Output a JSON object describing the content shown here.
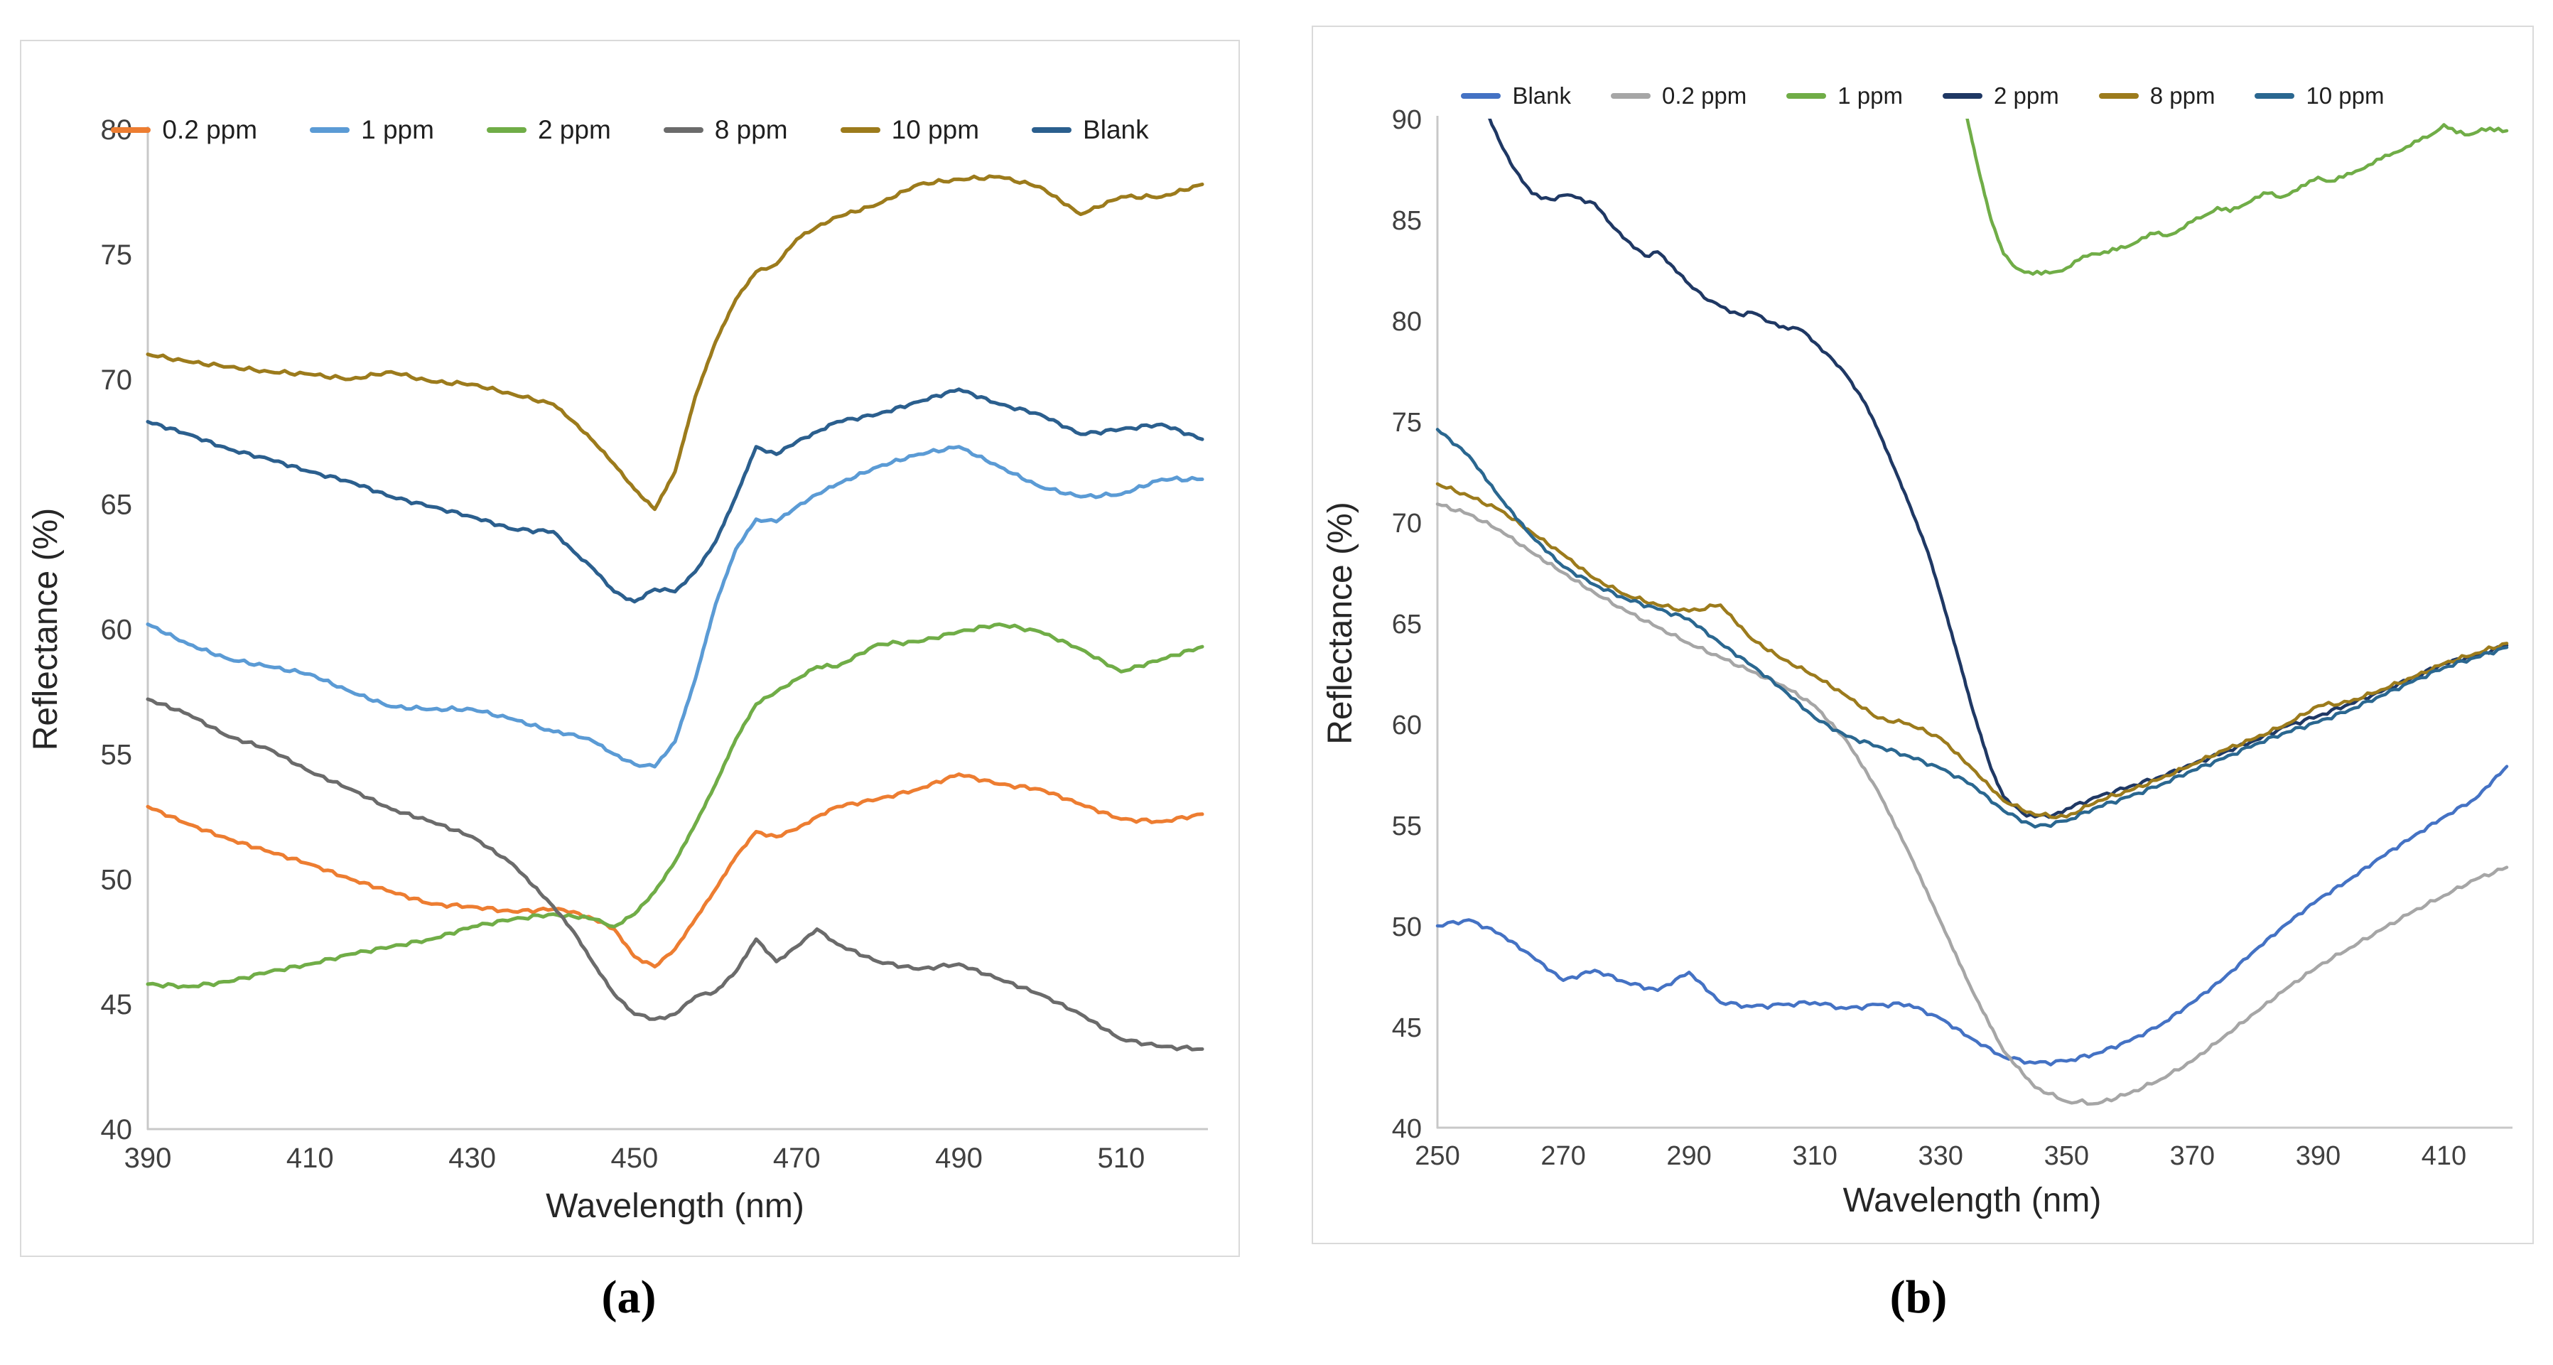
{
  "figure": {
    "captions": [
      "(a)",
      "(b)"
    ]
  },
  "chart_data": [
    {
      "id": "a",
      "type": "line",
      "title": "",
      "xlabel": "Wavelength (nm)",
      "ylabel": "Reflectance (%)",
      "xlim": [
        390,
        520
      ],
      "ylim": [
        40,
        80
      ],
      "xticks": [
        390,
        410,
        430,
        450,
        470,
        490,
        510
      ],
      "yticks": [
        40,
        45,
        50,
        55,
        60,
        65,
        70,
        75,
        80
      ],
      "grid": false,
      "legend_position": "top",
      "legend_order": [
        "0.2 ppm",
        "1 ppm",
        "2 ppm",
        "8 ppm",
        "10 ppm",
        "Blank"
      ],
      "series": [
        {
          "name": "0.2 ppm",
          "color": "#ED7D31",
          "x": [
            390,
            395,
            400,
            405,
            410,
            415,
            420,
            425,
            430,
            435,
            440,
            442.5,
            445,
            447.5,
            450,
            452.5,
            455,
            457.5,
            460,
            462.5,
            465,
            467.5,
            470,
            472.5,
            475,
            480,
            485,
            490,
            495,
            500,
            505,
            510,
            515,
            520
          ],
          "y": [
            52.9,
            52.2,
            51.6,
            51.1,
            50.6,
            50.0,
            49.5,
            49.0,
            48.9,
            48.7,
            48.8,
            48.7,
            48.4,
            48.0,
            46.9,
            46.5,
            47.2,
            48.4,
            49.6,
            50.9,
            51.9,
            51.7,
            52.0,
            52.5,
            52.9,
            53.2,
            53.6,
            54.2,
            53.8,
            53.6,
            53.0,
            52.4,
            52.3,
            52.6
          ]
        },
        {
          "name": "1 ppm",
          "color": "#5B9BD5",
          "x": [
            390,
            395,
            400,
            405,
            410,
            415,
            420,
            425,
            430,
            435,
            440,
            442.5,
            445,
            447.5,
            450,
            452.5,
            455,
            457.5,
            460,
            462.5,
            465,
            467.5,
            470,
            472.5,
            475,
            480,
            485,
            490,
            495,
            500,
            505,
            510,
            515,
            520
          ],
          "y": [
            60.2,
            59.4,
            58.8,
            58.5,
            58.2,
            57.5,
            56.9,
            56.8,
            56.8,
            56.4,
            55.9,
            55.8,
            55.5,
            55.0,
            54.6,
            54.5,
            55.5,
            58.0,
            61.0,
            63.2,
            64.4,
            64.3,
            64.9,
            65.4,
            65.8,
            66.5,
            67.0,
            67.3,
            66.5,
            65.7,
            65.3,
            65.4,
            66.0,
            66.0
          ]
        },
        {
          "name": "2 ppm",
          "color": "#70AD47",
          "x": [
            390,
            395,
            400,
            405,
            410,
            415,
            420,
            425,
            430,
            435,
            440,
            442.5,
            445,
            447.5,
            450,
            452.5,
            455,
            457.5,
            460,
            462.5,
            465,
            467.5,
            470,
            472.5,
            475,
            480,
            485,
            490,
            495,
            500,
            505,
            510,
            515,
            520
          ],
          "y": [
            45.8,
            45.7,
            45.9,
            46.3,
            46.6,
            47.0,
            47.3,
            47.6,
            48.1,
            48.4,
            48.6,
            48.5,
            48.4,
            48.1,
            48.6,
            49.5,
            50.7,
            52.2,
            53.8,
            55.6,
            57.0,
            57.5,
            58.0,
            58.5,
            58.5,
            59.4,
            59.5,
            59.9,
            60.2,
            59.9,
            59.2,
            58.3,
            58.8,
            59.3
          ]
        },
        {
          "name": "8 ppm",
          "color": "#6B6B6B",
          "x": [
            390,
            395,
            400,
            405,
            410,
            415,
            420,
            425,
            430,
            435,
            440,
            442.5,
            445,
            447.5,
            450,
            452.5,
            455,
            457.5,
            460,
            462.5,
            465,
            467.5,
            470,
            472.5,
            475,
            480,
            485,
            490,
            495,
            500,
            505,
            510,
            515,
            520
          ],
          "y": [
            57.2,
            56.6,
            55.7,
            55.2,
            54.3,
            53.6,
            52.8,
            52.3,
            51.7,
            50.6,
            48.9,
            47.9,
            46.6,
            45.4,
            44.6,
            44.4,
            44.6,
            45.3,
            45.5,
            46.3,
            47.6,
            46.7,
            47.3,
            48.0,
            47.4,
            46.7,
            46.4,
            46.6,
            46.0,
            45.4,
            44.6,
            43.6,
            43.3,
            43.2
          ]
        },
        {
          "name": "10 ppm",
          "color": "#9C7B1C",
          "x": [
            390,
            395,
            400,
            405,
            410,
            415,
            420,
            425,
            430,
            435,
            440,
            442.5,
            445,
            447.5,
            450,
            452.5,
            455,
            457.5,
            460,
            462.5,
            465,
            467.5,
            470,
            472.5,
            475,
            480,
            485,
            490,
            495,
            500,
            505,
            510,
            515,
            520
          ],
          "y": [
            71.0,
            70.7,
            70.5,
            70.3,
            70.2,
            70.0,
            70.3,
            69.9,
            69.8,
            69.4,
            69.0,
            68.3,
            67.5,
            66.6,
            65.6,
            64.8,
            66.3,
            69.3,
            71.5,
            73.2,
            74.3,
            74.6,
            75.6,
            76.1,
            76.5,
            77.0,
            77.8,
            78.0,
            78.1,
            77.7,
            76.6,
            77.3,
            77.3,
            77.8
          ]
        },
        {
          "name": "Blank",
          "color": "#2B5F8E",
          "x": [
            390,
            395,
            400,
            405,
            410,
            415,
            420,
            425,
            430,
            435,
            440,
            442.5,
            445,
            447.5,
            450,
            452.5,
            455,
            457.5,
            460,
            462.5,
            465,
            467.5,
            470,
            472.5,
            475,
            480,
            485,
            490,
            495,
            500,
            505,
            510,
            515,
            520
          ],
          "y": [
            68.3,
            67.8,
            67.2,
            66.8,
            66.3,
            65.9,
            65.3,
            64.9,
            64.5,
            64.0,
            63.9,
            63.1,
            62.4,
            61.5,
            61.1,
            61.6,
            61.5,
            62.3,
            63.5,
            65.3,
            67.3,
            67.0,
            67.5,
            67.9,
            68.3,
            68.6,
            69.1,
            69.6,
            69.0,
            68.6,
            67.8,
            68.0,
            68.2,
            67.6
          ]
        }
      ]
    },
    {
      "id": "b",
      "type": "line",
      "title": "",
      "xlabel": "Wavelength (nm)",
      "ylabel": "Reflectance (%)",
      "xlim": [
        250,
        420
      ],
      "ylim": [
        40,
        90
      ],
      "xticks": [
        250,
        270,
        290,
        310,
        330,
        350,
        370,
        390,
        410
      ],
      "yticks": [
        40,
        45,
        50,
        55,
        60,
        65,
        70,
        75,
        80,
        85,
        90
      ],
      "grid": false,
      "legend_position": "top",
      "legend_order": [
        "Blank",
        "0.2 ppm",
        "1 ppm",
        "2 ppm",
        "8 ppm",
        "10 ppm"
      ],
      "series": [
        {
          "name": "Blank",
          "color": "#4472C4",
          "x": [
            250,
            255,
            260,
            265,
            270,
            275,
            280,
            285,
            290,
            295,
            300,
            305,
            310,
            315,
            320,
            325,
            330,
            335,
            340,
            345,
            350,
            355,
            360,
            365,
            370,
            375,
            380,
            385,
            390,
            395,
            400,
            405,
            410,
            415,
            420
          ],
          "y": [
            50.0,
            50.3,
            49.6,
            48.5,
            47.3,
            47.8,
            47.2,
            46.8,
            47.7,
            46.2,
            46.0,
            46.1,
            46.2,
            45.9,
            46.1,
            46.1,
            45.4,
            44.4,
            43.5,
            43.2,
            43.3,
            43.7,
            44.3,
            45.1,
            46.2,
            47.4,
            48.8,
            50.1,
            51.3,
            52.3,
            53.4,
            54.4,
            55.4,
            56.3,
            57.9
          ]
        },
        {
          "name": "0.2 ppm",
          "color": "#A6A6A6",
          "x": [
            250,
            255,
            260,
            265,
            270,
            275,
            280,
            285,
            290,
            295,
            300,
            305,
            310,
            315,
            320,
            325,
            330,
            335,
            340,
            345,
            350,
            355,
            360,
            365,
            370,
            375,
            380,
            385,
            390,
            395,
            400,
            405,
            410,
            415,
            420
          ],
          "y": [
            70.9,
            70.4,
            69.6,
            68.5,
            67.5,
            66.5,
            65.6,
            64.8,
            64.0,
            63.3,
            62.6,
            61.9,
            60.9,
            59.2,
            56.7,
            53.6,
            50.2,
            46.8,
            43.8,
            42.0,
            41.3,
            41.2,
            41.7,
            42.4,
            43.3,
            44.5,
            45.7,
            46.9,
            48.0,
            48.9,
            49.8,
            50.7,
            51.5,
            52.3,
            52.9
          ]
        },
        {
          "name": "1 ppm",
          "color": "#70AD47",
          "x": [
            334,
            336,
            338,
            340,
            342,
            344,
            346,
            348,
            350,
            352,
            354,
            356,
            358,
            360,
            362,
            364,
            366,
            368,
            370,
            372,
            374,
            376,
            378,
            380,
            382,
            384,
            386,
            388,
            390,
            392,
            394,
            396,
            398,
            400,
            402,
            404,
            406,
            408,
            410,
            412,
            414,
            416,
            418,
            420
          ],
          "y": [
            90.3,
            87.5,
            85.0,
            83.3,
            82.6,
            82.4,
            82.3,
            82.4,
            82.6,
            83.0,
            83.3,
            83.4,
            83.5,
            83.7,
            84.1,
            84.3,
            84.2,
            84.5,
            84.9,
            85.2,
            85.6,
            85.4,
            85.7,
            86.1,
            86.3,
            86.1,
            86.4,
            86.7,
            87.1,
            86.9,
            87.1,
            87.4,
            87.7,
            88.0,
            88.3,
            88.6,
            88.9,
            89.2,
            89.7,
            89.3,
            89.2,
            89.5,
            89.4,
            89.4
          ]
        },
        {
          "name": "2 ppm",
          "color": "#1F3864",
          "x": [
            258,
            260,
            262,
            265,
            268,
            270,
            272,
            275,
            278,
            280,
            283,
            285,
            287,
            290,
            293,
            295,
            298,
            300,
            303,
            305,
            308,
            310,
            313,
            315,
            318,
            320,
            323,
            325,
            328,
            330,
            333,
            335,
            338,
            340,
            343,
            345,
            348,
            350,
            355,
            360,
            365,
            370,
            375,
            380,
            385,
            390,
            395,
            400,
            405,
            410,
            415,
            420
          ],
          "y": [
            90.2,
            88.8,
            87.6,
            86.3,
            86.0,
            86.2,
            86.1,
            85.8,
            84.6,
            84.0,
            83.2,
            83.4,
            82.8,
            81.8,
            81.0,
            80.7,
            80.3,
            80.4,
            79.9,
            79.7,
            79.5,
            78.9,
            78.0,
            77.3,
            75.9,
            74.6,
            72.4,
            70.9,
            68.5,
            66.4,
            63.1,
            60.8,
            57.8,
            56.4,
            55.6,
            55.4,
            55.5,
            55.8,
            56.4,
            56.9,
            57.4,
            58.0,
            58.6,
            59.2,
            59.9,
            60.4,
            61.0,
            61.6,
            62.3,
            63.0,
            63.4,
            63.9
          ]
        },
        {
          "name": "8 ppm",
          "color": "#9C7B1C",
          "x": [
            250,
            255,
            260,
            265,
            270,
            275,
            280,
            285,
            290,
            295,
            300,
            305,
            310,
            315,
            320,
            325,
            330,
            335,
            340,
            345,
            350,
            355,
            360,
            365,
            370,
            375,
            380,
            385,
            390,
            395,
            400,
            405,
            410,
            415,
            420
          ],
          "y": [
            71.9,
            71.3,
            70.6,
            69.5,
            68.4,
            67.2,
            66.4,
            65.9,
            65.6,
            65.9,
            64.2,
            63.2,
            62.4,
            61.4,
            60.3,
            60.0,
            59.3,
            57.8,
            56.2,
            55.5,
            55.4,
            56.2,
            56.7,
            57.3,
            58.0,
            58.7,
            59.3,
            60.0,
            60.9,
            61.1,
            61.7,
            62.3,
            63.0,
            63.5,
            64.0
          ]
        },
        {
          "name": "10 ppm",
          "color": "#2A6790",
          "x": [
            250,
            255,
            260,
            265,
            270,
            275,
            280,
            285,
            290,
            295,
            300,
            305,
            310,
            315,
            320,
            325,
            330,
            335,
            340,
            345,
            350,
            355,
            360,
            365,
            370,
            375,
            380,
            385,
            390,
            395,
            400,
            405,
            410,
            415,
            420
          ],
          "y": [
            74.6,
            73.3,
            71.2,
            69.3,
            67.8,
            66.9,
            66.2,
            65.7,
            65.2,
            64.0,
            62.9,
            61.7,
            60.3,
            59.4,
            58.9,
            58.4,
            57.8,
            57.0,
            55.7,
            54.9,
            55.2,
            55.9,
            56.4,
            57.0,
            57.7,
            58.3,
            59.0,
            59.6,
            60.1,
            60.7,
            61.4,
            62.1,
            62.8,
            63.3,
            63.8
          ]
        }
      ]
    }
  ]
}
